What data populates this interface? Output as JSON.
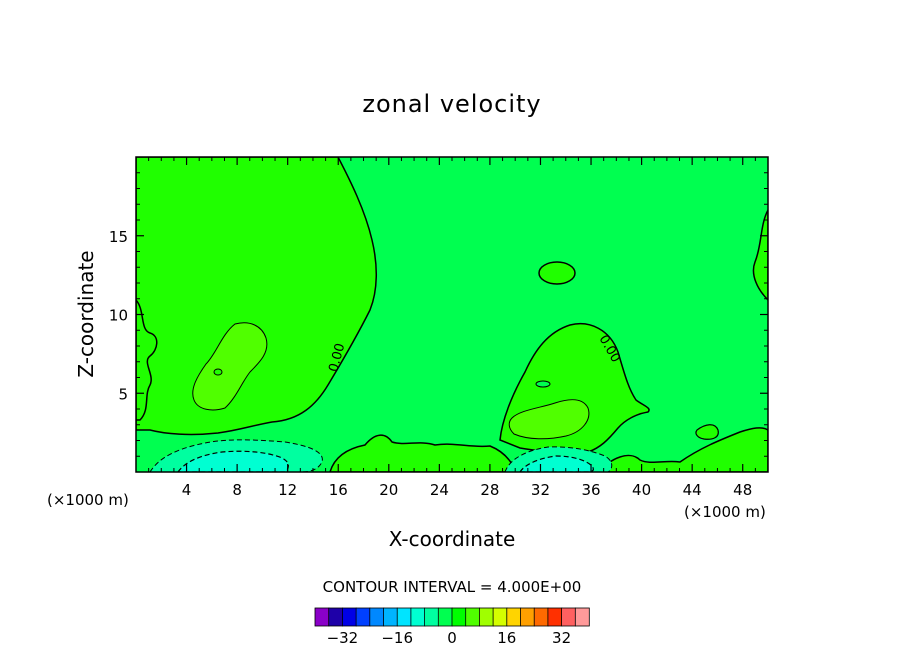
{
  "chart_data": {
    "type": "heatmap",
    "subtype": "filled-contour",
    "title": "zonal velocity",
    "xlabel": "X-coordinate",
    "ylabel": "Z-coordinate",
    "x_unit_note": "(×1000 m)",
    "y_unit_note": "(×1000 m)",
    "xlim": [
      0,
      50
    ],
    "ylim": [
      0,
      20
    ],
    "x_ticks": [
      4,
      8,
      12,
      16,
      20,
      24,
      28,
      32,
      36,
      40,
      44,
      48
    ],
    "y_ticks": [
      5,
      10,
      15
    ],
    "contour_interval_text": "CONTOUR INTERVAL = 4.000E+00",
    "contour_labels": [
      {
        "text": "0.00",
        "x": 16.2,
        "z": 7.2
      },
      {
        "text": "0.00",
        "x": 37.2,
        "z": 7.7
      }
    ],
    "colorbar": {
      "levels": [
        -36,
        -32,
        -28,
        -24,
        -20,
        -16,
        -12,
        -8,
        -4,
        0,
        4,
        8,
        12,
        16,
        20,
        24,
        28,
        32,
        36
      ],
      "tick_values": [
        -32,
        -16,
        0,
        16,
        32
      ],
      "tick_labels": [
        "−32",
        "−16",
        "0",
        "16",
        "32"
      ],
      "colors": [
        "#8a00c8",
        "#1e00a8",
        "#0000e6",
        "#0040ff",
        "#0088ff",
        "#00b4ff",
        "#00e4ff",
        "#00ffd2",
        "#00ffa0",
        "#00ff50",
        "#00ff00",
        "#50ff00",
        "#a0ff00",
        "#d4ff00",
        "#ffd400",
        "#ffa000",
        "#ff6a00",
        "#ff3000",
        "#ff6060",
        "#ff9a9a"
      ]
    },
    "regions": [
      {
        "name": "background",
        "level_range": [
          -4,
          0
        ],
        "color": "#00ff50"
      },
      {
        "name": "positive-left-column",
        "level_range": [
          0,
          4
        ],
        "color": "#20ff00"
      },
      {
        "name": "positive-inner-left",
        "level_range": [
          4,
          8
        ],
        "color": "#50ff00"
      },
      {
        "name": "positive-right-dome",
        "level_range": [
          0,
          4
        ],
        "color": "#20ff00"
      },
      {
        "name": "positive-inner-right",
        "level_range": [
          4,
          8
        ],
        "color": "#50ff00"
      },
      {
        "name": "negative-jet-left",
        "level_range": [
          -12,
          -8
        ],
        "color": "#00ffd2"
      },
      {
        "name": "negative-jet-right",
        "level_range": [
          -12,
          -8
        ],
        "color": "#00ffd2"
      }
    ]
  }
}
